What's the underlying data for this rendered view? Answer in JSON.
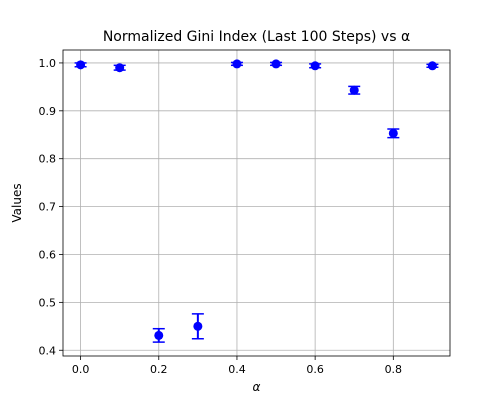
{
  "chart_data": {
    "type": "scatter",
    "title": "Normalized Gini Index (Last 100 Steps) vs α",
    "xlabel": "α",
    "ylabel": "Values",
    "xlim": [
      -0.045,
      0.945
    ],
    "ylim": [
      0.388,
      1.027
    ],
    "grid": true,
    "x_ticks": [
      0.0,
      0.2,
      0.4,
      0.6,
      0.8
    ],
    "x_tick_labels": [
      "0.0",
      "0.2",
      "0.4",
      "0.6",
      "0.8"
    ],
    "y_ticks": [
      0.4,
      0.5,
      0.6,
      0.7,
      0.8,
      0.9,
      1.0
    ],
    "y_tick_labels": [
      "0.4",
      "0.5",
      "0.6",
      "0.7",
      "0.8",
      "0.9",
      "1.0"
    ],
    "marker_color": "#0000ff",
    "series": [
      {
        "x": [
          0.0,
          0.1,
          0.2,
          0.3,
          0.4,
          0.5,
          0.6,
          0.7,
          0.8,
          0.9
        ],
        "y": [
          0.996,
          0.99,
          0.431,
          0.45,
          0.998,
          0.998,
          0.994,
          0.943,
          0.853,
          0.994
        ],
        "yerr": [
          0.004,
          0.005,
          0.014,
          0.026,
          0.003,
          0.003,
          0.004,
          0.008,
          0.009,
          0.003
        ]
      }
    ]
  }
}
